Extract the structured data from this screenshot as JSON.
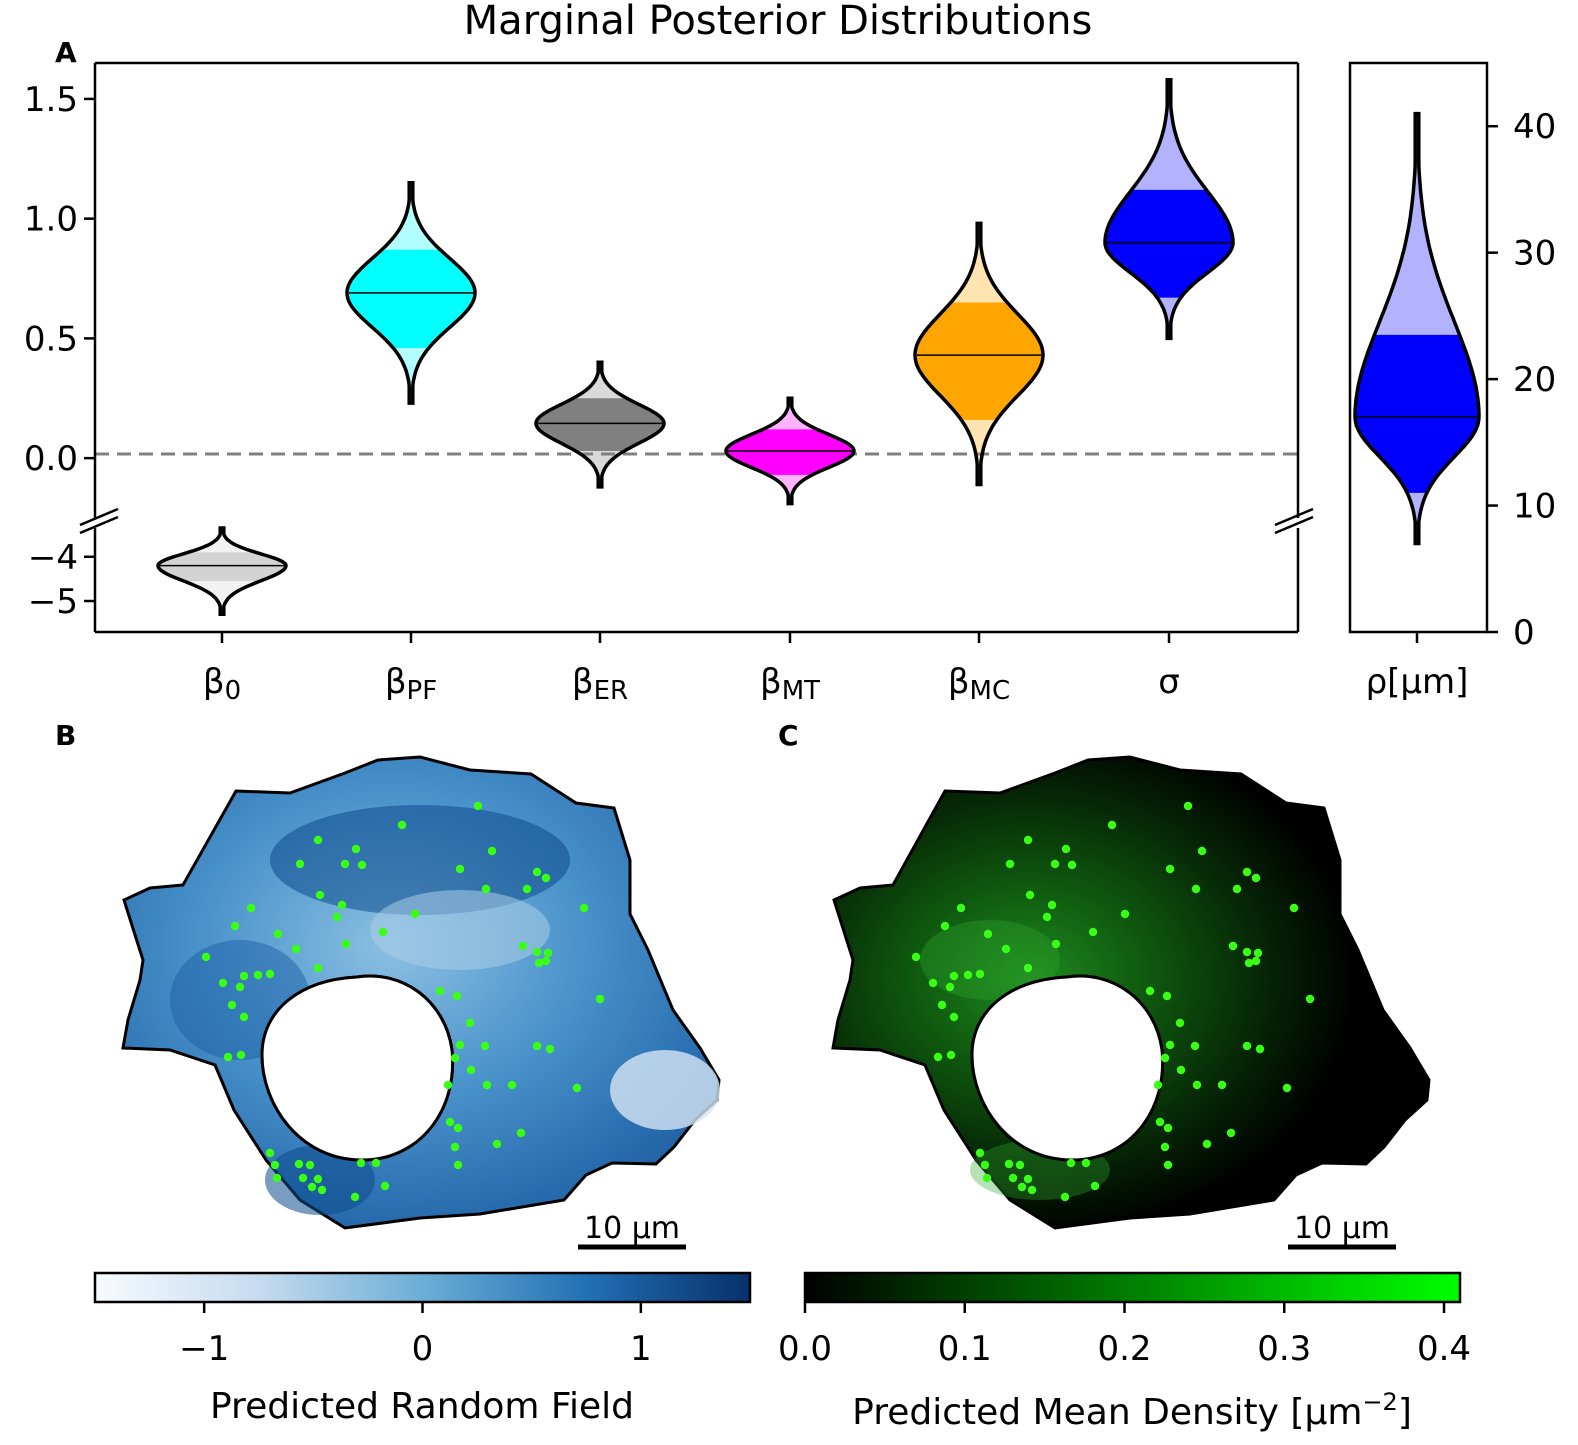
{
  "title": "Marginal Posterior Distributions",
  "panels": {
    "a": "A",
    "b": "B",
    "c": "C"
  },
  "chart_data": [
    {
      "panel": "A",
      "type": "violin",
      "title": "Marginal Posterior Distributions",
      "categories": [
        {
          "base": "β",
          "sub": "0"
        },
        {
          "base": "β",
          "sub": "PF"
        },
        {
          "base": "β",
          "sub": "ER"
        },
        {
          "base": "β",
          "sub": "MT"
        },
        {
          "base": "β",
          "sub": "MC"
        },
        {
          "base": "σ",
          "sub": ""
        }
      ],
      "series": [
        {
          "median": -4.2,
          "min": -5.3,
          "max": -3.35,
          "q_low": -4.55,
          "q_high": -3.9,
          "color": "#d3d3d3",
          "broken_axis": "lower"
        },
        {
          "median": 0.69,
          "min": 0.23,
          "max": 1.15,
          "q_low": 0.46,
          "q_high": 0.87,
          "color": "#00ffff"
        },
        {
          "median": 0.145,
          "min": -0.12,
          "max": 0.4,
          "q_low": 0.03,
          "q_high": 0.25,
          "color": "#808080"
        },
        {
          "median": 0.03,
          "min": -0.19,
          "max": 0.25,
          "q_low": -0.07,
          "q_high": 0.12,
          "color": "#ff00ff"
        },
        {
          "median": 0.43,
          "min": -0.11,
          "max": 0.98,
          "q_low": 0.16,
          "q_high": 0.65,
          "color": "#ffa500"
        },
        {
          "median": 0.9,
          "min": 0.5,
          "max": 1.58,
          "q_low": 0.67,
          "q_high": 1.12,
          "color": "#0000ff"
        }
      ],
      "yticks_upper": [
        "0.0",
        "0.5",
        "1.0",
        "1.5"
      ],
      "yticks_upper_values": [
        0.0,
        0.5,
        1.0,
        1.5
      ],
      "ylim_upper": [
        -0.25,
        1.65
      ],
      "yticks_lower": [
        "−4",
        "−5"
      ],
      "yticks_lower_values": [
        -4,
        -5
      ],
      "ylim_lower": [
        -5.7,
        -3.35
      ],
      "reference_line": 0.0
    },
    {
      "panel": "A-right",
      "type": "violin",
      "categories": [
        "ρ[μm]"
      ],
      "series": [
        {
          "median": 17,
          "min": 7,
          "max": 41,
          "q_low": 11,
          "q_high": 23.5,
          "color": "#0000ff"
        }
      ],
      "yticks": [
        "0",
        "10",
        "20",
        "30",
        "40"
      ],
      "yticks_values": [
        0,
        10,
        20,
        30,
        40
      ],
      "ylim": [
        0,
        45
      ],
      "y_axis_side": "right"
    },
    {
      "panel": "B",
      "type": "heatmap",
      "colormap": "Blues",
      "colorbar_label": "Predicted Random Field",
      "colorbar_ticks": [
        "−1",
        "0",
        "1"
      ],
      "colorbar_tick_values": [
        -1,
        0,
        1
      ],
      "colorbar_range": [
        -1.5,
        1.5
      ],
      "point_color": "#39ff14",
      "scale_bar": "10 μm"
    },
    {
      "panel": "C",
      "type": "heatmap",
      "colormap": "black-to-green",
      "colorbar_label_main": "Predicted Mean Density [μm",
      "colorbar_label_sup": "−2",
      "colorbar_label_end": "]",
      "colorbar_ticks": [
        "0.0",
        "0.1",
        "0.2",
        "0.3",
        "0.4"
      ],
      "colorbar_tick_values": [
        0.0,
        0.1,
        0.2,
        0.3,
        0.4
      ],
      "colorbar_range": [
        0.0,
        0.41
      ],
      "point_color": "#39ff14",
      "scale_bar": "10 μm"
    }
  ]
}
